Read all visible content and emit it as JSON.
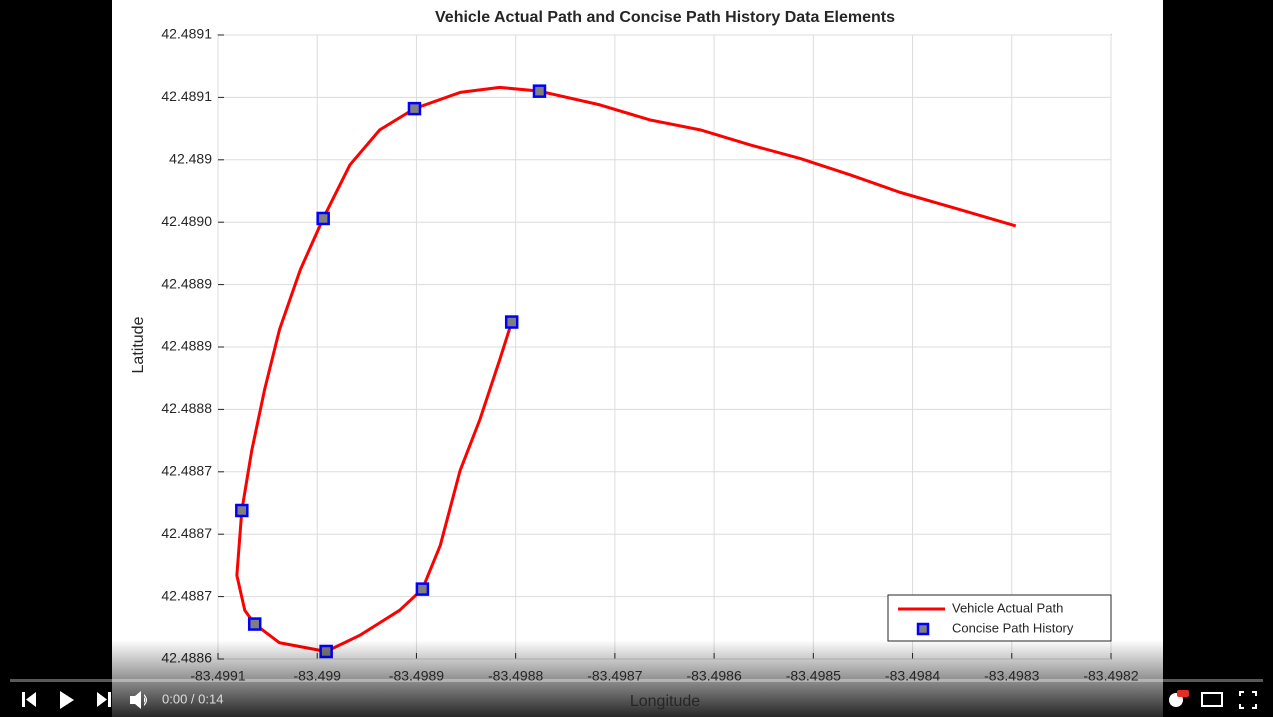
{
  "chart_data": {
    "type": "line",
    "title": "Vehicle Actual Path and Concise Path History Data Elements",
    "xlabel": "Longitude",
    "ylabel": "Latitude",
    "xlim": [
      -83.4991,
      -83.4982
    ],
    "xticks": [
      -83.4991,
      -83.499,
      -83.4989,
      -83.4988,
      -83.4987,
      -83.4986,
      -83.4985,
      -83.4984,
      -83.4983,
      -83.4982
    ],
    "ylim": [
      42.4886,
      42.4891
    ],
    "yticks": [
      {
        "value": 42.4886,
        "label": "42.4886"
      },
      {
        "value": 42.48865,
        "label": "42.4887"
      },
      {
        "value": 42.4887,
        "label": "42.4887"
      },
      {
        "value": 42.48875,
        "label": "42.4887"
      },
      {
        "value": 42.4888,
        "label": "42.4888"
      },
      {
        "value": 42.48885,
        "label": "42.4889"
      },
      {
        "value": 42.4889,
        "label": "42.4889"
      },
      {
        "value": 42.48895,
        "label": "42.4890"
      },
      {
        "value": 42.489,
        "label": "42.489"
      },
      {
        "value": 42.48905,
        "label": "42.4891"
      },
      {
        "value": 42.4891,
        "label": "42.4891"
      }
    ],
    "grid": true,
    "legend": "southeast",
    "series": [
      {
        "name": "Vehicle Actual Path",
        "color": "#ff0000",
        "style": "line",
        "x": [
          -83.498296,
          -83.498352,
          -83.498413,
          -83.498463,
          -83.498513,
          -83.498564,
          -83.498614,
          -83.498665,
          -83.498715,
          -83.498776,
          -83.498816,
          -83.498856,
          -83.498902,
          -83.498937,
          -83.498967,
          -83.498994,
          -83.499017,
          -83.499038,
          -83.499053,
          -83.499066,
          -83.499076,
          -83.499081,
          -83.499073,
          -83.499063,
          -83.499038,
          -83.498991,
          -83.498957,
          -83.498917,
          -83.498894,
          -83.498876,
          -83.498856,
          -83.498836,
          -83.498816,
          -83.498804
        ],
        "values": [
          42.488947,
          42.48896,
          42.488974,
          42.488988,
          42.489001,
          42.489012,
          42.489024,
          42.489032,
          42.489044,
          42.489055,
          42.489058,
          42.489054,
          42.489041,
          42.489024,
          42.488996,
          42.488953,
          42.488912,
          42.488864,
          42.488816,
          42.488767,
          42.488719,
          42.488667,
          42.488639,
          42.488628,
          42.488613,
          42.488606,
          42.488619,
          42.488639,
          42.488656,
          42.488691,
          42.488751,
          42.488792,
          42.48884,
          42.48887
        ]
      },
      {
        "name": "Concise Path History",
        "color": "#0000ff",
        "fill": "#7f7f7f",
        "style": "marker",
        "x": [
          -83.498776,
          -83.498902,
          -83.498994,
          -83.499076,
          -83.499063,
          -83.498991,
          -83.498894,
          -83.498804
        ],
        "values": [
          42.489055,
          42.489041,
          42.488953,
          42.488719,
          42.488628,
          42.488606,
          42.488656,
          42.48887
        ]
      }
    ]
  },
  "player": {
    "time": "0:00 / 0:14"
  }
}
